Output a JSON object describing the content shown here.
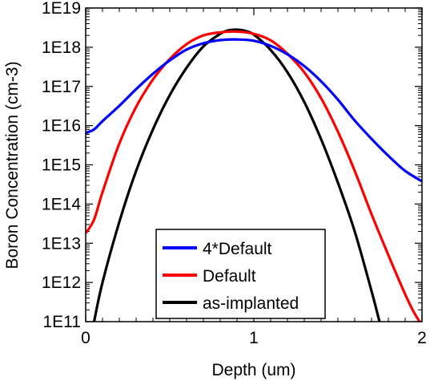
{
  "chart_data": {
    "type": "line",
    "title": "",
    "xlabel": "Depth (um)",
    "ylabel": "Boron Concentration (cm-3)",
    "xscale": "linear",
    "yscale": "log",
    "xlim": [
      0,
      2
    ],
    "ylim": [
      100000000000.0,
      1e+19
    ],
    "x_ticks": [
      0,
      1,
      2
    ],
    "x_tick_labels": [
      "0",
      "1",
      "2"
    ],
    "y_ticks": [
      100000000000.0,
      1000000000000.0,
      10000000000000.0,
      100000000000000.0,
      1000000000000000.0,
      1e+16,
      1e+17,
      1e+18,
      1e+19
    ],
    "y_tick_labels": [
      "1E11",
      "1E12",
      "1E13",
      "1E14",
      "1E15",
      "1E16",
      "1E17",
      "1E18",
      "1E19"
    ],
    "grid": false,
    "legend_position": "bottom-center",
    "series": [
      {
        "name": "4*Default",
        "color": "#0000ff",
        "x": [
          0.0,
          0.05,
          0.1,
          0.2,
          0.3,
          0.4,
          0.5,
          0.6,
          0.7,
          0.8,
          0.9,
          1.0,
          1.1,
          1.2,
          1.3,
          1.4,
          1.5,
          1.6,
          1.7,
          1.8,
          1.9,
          2.0
        ],
        "y": [
          6500000000000000.0,
          8000000000000000.0,
          1.3e+16,
          3.2e+16,
          8.5e+16,
          2.1e+17,
          4.6e+17,
          8.7e+17,
          1.26e+18,
          1.52e+18,
          1.58e+18,
          1.46e+18,
          1.08e+18,
          6.6e+17,
          3.3e+17,
          1.35e+17,
          4.6e+16,
          1.35e+16,
          4600000000000000.0,
          1700000000000000.0,
          700000000000000.0,
          380000000000000.0
        ]
      },
      {
        "name": "Default",
        "color": "#ff0000",
        "x": [
          0.0,
          0.05,
          0.1,
          0.2,
          0.3,
          0.4,
          0.5,
          0.6,
          0.7,
          0.8,
          0.9,
          1.0,
          1.1,
          1.2,
          1.3,
          1.4,
          1.5,
          1.6,
          1.7,
          1.8,
          1.9,
          1.95,
          2.0
        ],
        "y": [
          18000000000000.0,
          40000000000000.0,
          200000000000000.0,
          3500000000000000.0,
          3e+16,
          1.5e+17,
          5e+17,
          1.2e+18,
          2e+18,
          2.4e+18,
          2.5e+18,
          2.2e+18,
          1.5e+18,
          6.8e+17,
          2.3e+17,
          5e+16,
          7000000000000000.0,
          700000000000000.0,
          55000000000000.0,
          5000000000000.0,
          500000000000.0,
          180000000000.0,
          80000000000.0
        ]
      },
      {
        "name": "as-implanted",
        "color": "#000000",
        "x": [
          0.05,
          0.1,
          0.2,
          0.3,
          0.4,
          0.5,
          0.6,
          0.7,
          0.8,
          0.85,
          0.9,
          0.95,
          1.0,
          1.1,
          1.2,
          1.3,
          1.4,
          1.5,
          1.6,
          1.7,
          1.75
        ],
        "y": [
          100000000000.0,
          1000000000000.0,
          35000000000000.0,
          700000000000000.0,
          8000000000000000.0,
          6e+16,
          3e+17,
          1.05e+18,
          2.2e+18,
          2.7e+18,
          2.8e+18,
          2.6e+18,
          2.1e+18,
          8.5e+17,
          2.3e+17,
          4e+16,
          4500000000000000.0,
          350000000000000.0,
          20000000000000.0,
          600000000000.0,
          90000000000.0
        ]
      }
    ]
  }
}
